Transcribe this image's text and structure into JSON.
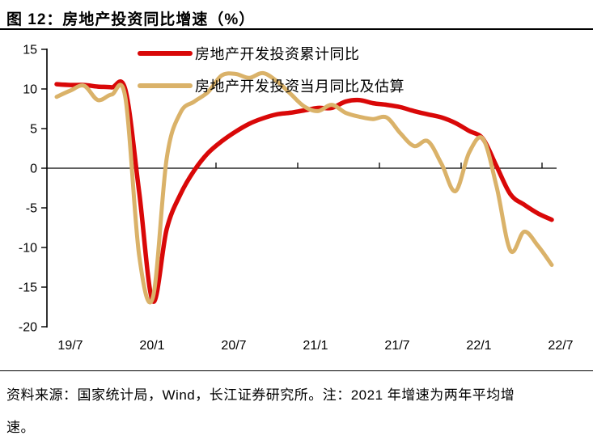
{
  "title": "图 12：房地产投资同比增速（%）",
  "footer": {
    "line1": "资料来源：国家统计局，Wind，长江证券研究所。注：2021 年增速为两年平均增",
    "line2": "速。"
  },
  "colors": {
    "accent_red": "#d90808",
    "accent_tan": "#dab269",
    "axis_black": "#000000",
    "background": "#ffffff"
  },
  "chart_data": {
    "type": "line",
    "title": "房地产投资同比增速（%）",
    "xlabel": "",
    "ylabel": "",
    "ylim": [
      -20,
      15
    ],
    "y_ticks": [
      15,
      10,
      5,
      0,
      -5,
      -10,
      -15,
      -20
    ],
    "x_tick_labels": [
      "19/7",
      "20/1",
      "20/7",
      "21/1",
      "21/7",
      "22/1",
      "22/7"
    ],
    "grid": "zero-baseline-only",
    "legend_position": "top-inside-left",
    "categories": [
      "19/7",
      "19/8",
      "19/9",
      "19/10",
      "19/11",
      "19/12",
      "20/1",
      "20/2",
      "20/3",
      "20/4",
      "20/5",
      "20/6",
      "20/7",
      "20/8",
      "20/9",
      "20/10",
      "20/11",
      "20/12",
      "21/1",
      "21/2",
      "21/3",
      "21/4",
      "21/5",
      "21/6",
      "21/7",
      "21/8",
      "21/9",
      "21/10",
      "21/11",
      "21/12",
      "22/1",
      "22/2",
      "22/3",
      "22/4",
      "22/5",
      "22/6",
      "22/7"
    ],
    "series": [
      {
        "name": "房地产开发投资累计同比",
        "color": "#d90808",
        "line_width": 5.5,
        "values": [
          10.6,
          10.5,
          10.5,
          10.3,
          10.2,
          9.9,
          -3.0,
          -16.8,
          -7.7,
          -3.3,
          -0.3,
          1.9,
          3.4,
          4.6,
          5.6,
          6.3,
          6.8,
          7.0,
          7.3,
          7.6,
          7.6,
          8.4,
          8.6,
          8.2,
          8.0,
          7.7,
          7.2,
          6.8,
          6.4,
          5.7,
          4.7,
          3.7,
          0.2,
          -3.3,
          -4.6,
          -5.7,
          -6.5
        ]
      },
      {
        "name": "房地产开发投资当月同比及估算",
        "color": "#dab269",
        "line_width": 5,
        "values": [
          9.0,
          9.8,
          10.4,
          8.6,
          9.3,
          8.9,
          -11.0,
          -16.3,
          1.2,
          7.0,
          8.4,
          9.6,
          11.7,
          11.9,
          11.4,
          12.0,
          11.0,
          9.4,
          7.8,
          7.2,
          8.0,
          7.0,
          6.5,
          6.2,
          6.4,
          4.4,
          2.8,
          3.4,
          0.5,
          -2.9,
          2.0,
          3.7,
          -2.4,
          -10.4,
          -8.0,
          -9.8,
          -12.2
        ]
      }
    ]
  }
}
